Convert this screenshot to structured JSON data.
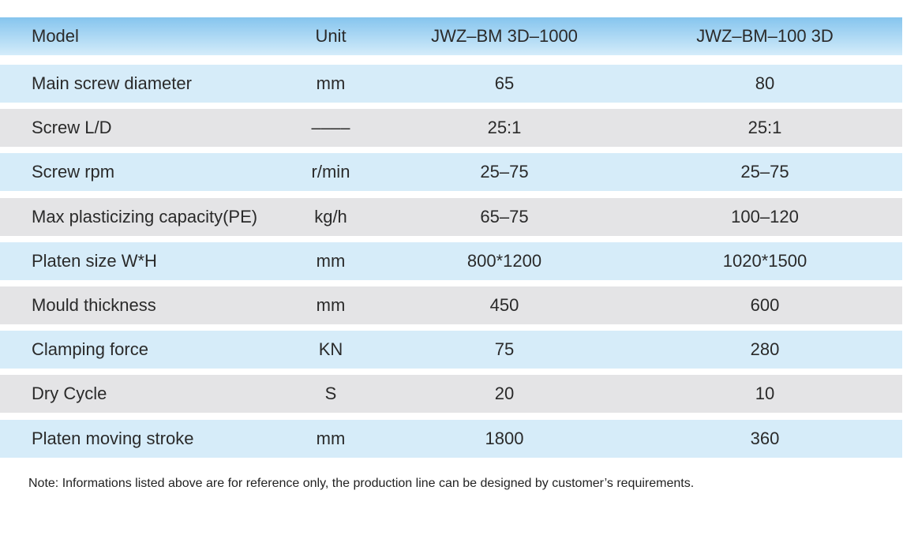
{
  "table": {
    "header": [
      "Model",
      "Unit",
      "JWZ–BM 3D–1000",
      "JWZ–BM–100 3D"
    ],
    "rows": [
      [
        "Main screw diameter",
        "mm",
        "65",
        "80"
      ],
      [
        "Screw L/D",
        "––––",
        "25:1",
        "25:1"
      ],
      [
        "Screw rpm",
        "r/min",
        "25–75",
        "25–75"
      ],
      [
        "Max plasticizing capacity(PE)",
        "kg/h",
        "65–75",
        "100–120"
      ],
      [
        "Platen size W*H",
        "mm",
        "800*1200",
        "1020*1500"
      ],
      [
        "Mould thickness",
        "mm",
        "450",
        "600"
      ],
      [
        "Clamping force",
        "KN",
        "75",
        "280"
      ],
      [
        "Dry Cycle",
        "S",
        "20",
        "10"
      ],
      [
        "Platen moving stroke",
        "mm",
        "1800",
        "360"
      ]
    ]
  },
  "note": "Note: Informations listed above are for reference only, the production line can be designed by customer’s requirements."
}
